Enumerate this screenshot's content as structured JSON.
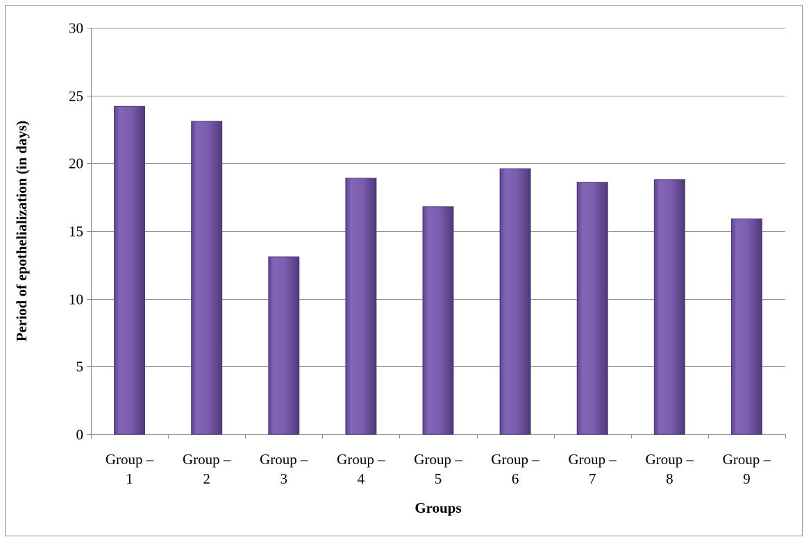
{
  "chart_data": {
    "type": "bar",
    "title": "",
    "xlabel": "Groups",
    "ylabel": "Period of epothelialization (in days)",
    "categories": [
      [
        "Group –",
        "1"
      ],
      [
        "Group –",
        "2"
      ],
      [
        "Group –",
        "3"
      ],
      [
        "Group –",
        "4"
      ],
      [
        "Group –",
        "5"
      ],
      [
        "Group –",
        "6"
      ],
      [
        "Group –",
        "7"
      ],
      [
        "Group –",
        "8"
      ],
      [
        "Group –",
        "9"
      ]
    ],
    "values": [
      24.2,
      23.1,
      13.1,
      18.9,
      16.8,
      19.6,
      18.6,
      18.8,
      15.9
    ],
    "ylim": [
      0,
      30
    ],
    "yticks": [
      0,
      5,
      10,
      15,
      20,
      25,
      30
    ],
    "grid": true,
    "legend": "none",
    "colors": {
      "bar": "#7b5cae",
      "bar_edge": "#4c3a73",
      "grid": "#8c8c8c",
      "axis": "#8c8c8c"
    }
  }
}
